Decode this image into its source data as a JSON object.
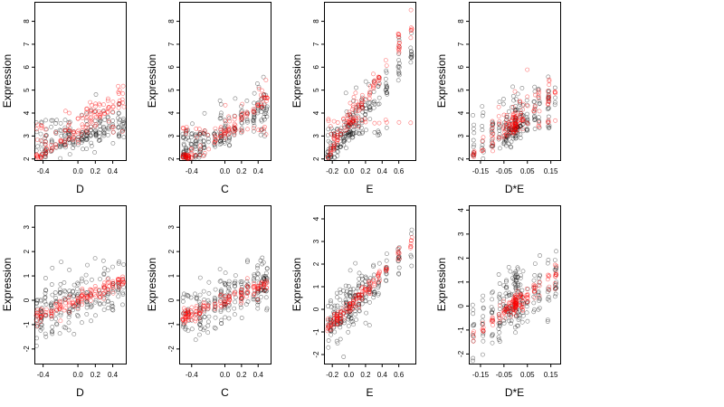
{
  "chart_data": [
    {
      "type": "scatter",
      "row": "top",
      "xlabel": "D",
      "ylabel": "Expression",
      "xlim": [
        -0.5,
        0.55
      ],
      "ylim": [
        1.95,
        8.85
      ],
      "xticks": [
        -0.4,
        0.0,
        0.2,
        0.4
      ],
      "xtick_labels": [
        "-0.4",
        "0.0",
        "0.2",
        "0.4"
      ],
      "yticks": [
        2,
        3,
        4,
        5,
        6,
        7,
        8
      ],
      "ytick_labels": [
        "2",
        "3",
        "4",
        "5",
        "6",
        "7",
        "8"
      ],
      "seed": 11,
      "n_black": 200,
      "n_red": 140,
      "x_groups": [
        -0.47,
        -0.42,
        -0.37,
        -0.3,
        -0.25,
        -0.2,
        -0.15,
        -0.1,
        -0.05,
        0.0,
        0.05,
        0.1,
        0.15,
        0.2,
        0.25,
        0.3,
        0.35,
        0.4,
        0.47,
        0.52
      ],
      "black": {
        "base": 3.0,
        "slope": 1.2,
        "spread": 1.2,
        "tail": "up"
      },
      "red": {
        "base": 3.3,
        "slope": 2.6,
        "spread": 0.8,
        "tail": "up"
      }
    },
    {
      "type": "scatter",
      "row": "top",
      "xlabel": "C",
      "ylabel": "Expression",
      "xlim": [
        -0.55,
        0.55
      ],
      "ylim": [
        1.95,
        8.85
      ],
      "xticks": [
        -0.4,
        0.0,
        0.2,
        0.4
      ],
      "xtick_labels": [
        "-0.4",
        "0.0",
        "0.2",
        "0.4"
      ],
      "yticks": [
        2,
        3,
        4,
        5,
        6,
        7,
        8
      ],
      "ytick_labels": [
        "2",
        "3",
        "4",
        "5",
        "6",
        "7",
        "8"
      ],
      "seed": 23,
      "n_black": 220,
      "n_red": 140,
      "x_groups": [
        -0.5,
        -0.47,
        -0.44,
        -0.4,
        -0.35,
        -0.3,
        -0.25,
        -0.2,
        -0.12,
        -0.05,
        0.0,
        0.05,
        0.12,
        0.2,
        0.27,
        0.35,
        0.4,
        0.44,
        0.47,
        0.5
      ],
      "black": {
        "base": 3.1,
        "slope": 2.2,
        "spread": 1.0,
        "tail": "up"
      },
      "red": {
        "base": 3.2,
        "slope": 3.0,
        "spread": 0.6,
        "tail": "up"
      }
    },
    {
      "type": "scatter",
      "row": "top",
      "xlabel": "E",
      "ylabel": "Expression",
      "xlim": [
        -0.3,
        0.8
      ],
      "ylim": [
        1.95,
        8.85
      ],
      "xticks": [
        -0.2,
        0.0,
        0.2,
        0.4,
        0.6
      ],
      "xtick_labels": [
        "-0.2",
        "0.0",
        "0.2",
        "0.4",
        "0.6"
      ],
      "yticks": [
        2,
        3,
        4,
        5,
        6,
        7,
        8
      ],
      "ytick_labels": [
        "2",
        "3",
        "4",
        "5",
        "6",
        "7",
        "8"
      ],
      "seed": 37,
      "n_black": 220,
      "n_red": 140,
      "x_groups": [
        -0.25,
        -0.22,
        -0.18,
        -0.14,
        -0.1,
        -0.06,
        -0.03,
        0.0,
        0.02,
        0.05,
        0.08,
        0.12,
        0.16,
        0.2,
        0.25,
        0.3,
        0.36,
        0.45,
        0.6,
        0.75
      ],
      "black": {
        "base": 3.2,
        "slope": 4.5,
        "spread": 1.1,
        "tail": "up"
      },
      "red": {
        "base": 3.6,
        "slope": 5.5,
        "spread": 0.6,
        "tail": "up"
      }
    },
    {
      "type": "scatter",
      "row": "top",
      "xlabel": "D*E",
      "ylabel": "Expression",
      "xlim": [
        -0.2,
        0.19
      ],
      "ylim": [
        1.95,
        8.85
      ],
      "xticks": [
        -0.15,
        -0.05,
        0.05,
        0.15
      ],
      "xtick_labels": [
        "-0.15",
        "-0.05",
        "0.05",
        "0.15"
      ],
      "yticks": [
        2,
        3,
        4,
        5,
        6,
        7,
        8
      ],
      "ytick_labels": [
        "2",
        "3",
        "4",
        "5",
        "6",
        "7",
        "8"
      ],
      "seed": 51,
      "n_black": 220,
      "n_red": 150,
      "x_groups": [
        -0.18,
        -0.14,
        -0.1,
        -0.07,
        -0.05,
        -0.04,
        -0.03,
        -0.02,
        -0.01,
        0.0,
        0.0,
        0.0,
        0.01,
        0.02,
        0.03,
        0.05,
        0.08,
        0.1,
        0.14,
        0.17
      ],
      "black": {
        "base": 3.4,
        "slope": 6.0,
        "spread": 1.4,
        "tail": "up"
      },
      "red": {
        "base": 3.6,
        "slope": 8.0,
        "spread": 0.9,
        "tail": "up"
      }
    },
    {
      "type": "scatter",
      "row": "bottom",
      "xlabel": "D",
      "ylabel": "Expression",
      "xlim": [
        -0.5,
        0.55
      ],
      "ylim": [
        -2.6,
        3.9
      ],
      "xticks": [
        -0.4,
        0.0,
        0.2,
        0.4
      ],
      "xtick_labels": [
        "-0.4",
        "0.0",
        "0.2",
        "0.4"
      ],
      "yticks": [
        -2,
        -1,
        0,
        1,
        2,
        3
      ],
      "ytick_labels": [
        "-2",
        "-1",
        "0",
        "1",
        "2",
        "3"
      ],
      "seed": 63,
      "n_black": 200,
      "n_red": 140,
      "x_groups": [
        -0.47,
        -0.42,
        -0.37,
        -0.3,
        -0.25,
        -0.2,
        -0.15,
        -0.1,
        -0.05,
        0.0,
        0.05,
        0.1,
        0.15,
        0.2,
        0.25,
        0.3,
        0.35,
        0.4,
        0.47,
        0.52
      ],
      "black": {
        "base": 0.0,
        "slope": 1.3,
        "spread": 1.1,
        "tail": "both"
      },
      "red": {
        "base": 0.0,
        "slope": 1.5,
        "spread": 0.3,
        "tail": "both"
      }
    },
    {
      "type": "scatter",
      "row": "bottom",
      "xlabel": "C",
      "ylabel": "Expression",
      "xlim": [
        -0.55,
        0.55
      ],
      "ylim": [
        -2.6,
        3.9
      ],
      "xticks": [
        -0.4,
        0.0,
        0.2,
        0.4
      ],
      "xtick_labels": [
        "-0.4",
        "0.0",
        "0.2",
        "0.4"
      ],
      "yticks": [
        -2,
        -1,
        0,
        1,
        2,
        3
      ],
      "ytick_labels": [
        "-2",
        "-1",
        "0",
        "1",
        "2",
        "3"
      ],
      "seed": 77,
      "n_black": 220,
      "n_red": 140,
      "x_groups": [
        -0.5,
        -0.47,
        -0.44,
        -0.4,
        -0.35,
        -0.3,
        -0.25,
        -0.2,
        -0.12,
        -0.05,
        0.0,
        0.05,
        0.12,
        0.2,
        0.27,
        0.35,
        0.4,
        0.44,
        0.47,
        0.5
      ],
      "black": {
        "base": 0.0,
        "slope": 1.3,
        "spread": 1.0,
        "tail": "both"
      },
      "red": {
        "base": 0.0,
        "slope": 1.4,
        "spread": 0.3,
        "tail": "both"
      }
    },
    {
      "type": "scatter",
      "row": "bottom",
      "xlabel": "E",
      "ylabel": "Expression",
      "xlim": [
        -0.3,
        0.8
      ],
      "ylim": [
        -2.4,
        4.6
      ],
      "xticks": [
        -0.2,
        0.0,
        0.2,
        0.4,
        0.6
      ],
      "xtick_labels": [
        "-0.2",
        "0.0",
        "0.2",
        "0.4",
        "0.6"
      ],
      "yticks": [
        -2,
        -1,
        0,
        1,
        2,
        3,
        4
      ],
      "ytick_labels": [
        "-2",
        "-1",
        "0",
        "1",
        "2",
        "3",
        "4"
      ],
      "seed": 89,
      "n_black": 220,
      "n_red": 140,
      "x_groups": [
        -0.25,
        -0.22,
        -0.18,
        -0.14,
        -0.1,
        -0.06,
        -0.03,
        0.0,
        0.02,
        0.05,
        0.08,
        0.12,
        0.16,
        0.2,
        0.25,
        0.3,
        0.36,
        0.45,
        0.6,
        0.75
      ],
      "black": {
        "base": 0.1,
        "slope": 3.5,
        "spread": 1.0,
        "tail": "both"
      },
      "red": {
        "base": 0.1,
        "slope": 3.8,
        "spread": 0.3,
        "tail": "both"
      }
    },
    {
      "type": "scatter",
      "row": "bottom",
      "xlabel": "D*E",
      "ylabel": "Expression",
      "xlim": [
        -0.2,
        0.19
      ],
      "ylim": [
        -2.4,
        4.2
      ],
      "xticks": [
        -0.15,
        -0.05,
        0.05,
        0.15
      ],
      "xtick_labels": [
        "-0.15",
        "-0.05",
        "0.05",
        "0.15"
      ],
      "yticks": [
        -2,
        -1,
        0,
        1,
        2,
        3,
        4
      ],
      "ytick_labels": [
        "-2",
        "-1",
        "0",
        "1",
        "2",
        "3",
        "4"
      ],
      "seed": 97,
      "n_black": 220,
      "n_red": 150,
      "x_groups": [
        -0.18,
        -0.14,
        -0.1,
        -0.07,
        -0.05,
        -0.04,
        -0.03,
        -0.02,
        -0.01,
        0.0,
        0.0,
        0.0,
        0.01,
        0.02,
        0.03,
        0.05,
        0.08,
        0.1,
        0.14,
        0.17
      ],
      "black": {
        "base": 0.1,
        "slope": 5.5,
        "spread": 1.3,
        "tail": "both"
      },
      "red": {
        "base": 0.1,
        "slope": 7.0,
        "spread": 0.35,
        "tail": "both"
      }
    }
  ],
  "colors": {
    "series_black": "#000000",
    "series_red": "#ff0000",
    "axis": "#000000",
    "background": "#ffffff"
  }
}
